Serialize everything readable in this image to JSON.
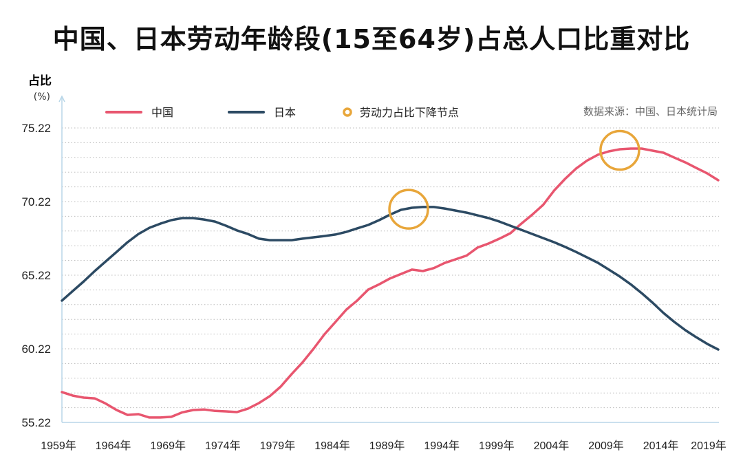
{
  "chart_data": {
    "type": "line",
    "title": "中国、日本劳动年龄段(15至64岁)占总人口比重对比",
    "ylabel": "占比",
    "yunit": "(%)",
    "source": "数据来源：中国、日本统计局",
    "ylim": [
      55.22,
      75.22
    ],
    "yticks": [
      "55.22",
      "60.22",
      "65.22",
      "70.22",
      "75.22"
    ],
    "xticks": [
      "1959年",
      "1964年",
      "1969年",
      "1974年",
      "1979年",
      "1984年",
      "1989年",
      "1994年",
      "1999年",
      "2004年",
      "2009年",
      "2014年",
      "2019年"
    ],
    "xlim": [
      1959,
      2019
    ],
    "grid": "dotted horizontal every 1 unit",
    "legend_position": "top",
    "x": [
      1959,
      1960,
      1961,
      1962,
      1963,
      1964,
      1965,
      1966,
      1967,
      1968,
      1969,
      1970,
      1971,
      1972,
      1973,
      1974,
      1975,
      1976,
      1977,
      1978,
      1979,
      1980,
      1981,
      1982,
      1983,
      1984,
      1985,
      1986,
      1987,
      1988,
      1989,
      1990,
      1991,
      1992,
      1993,
      1994,
      1995,
      1996,
      1997,
      1998,
      1999,
      2000,
      2001,
      2002,
      2003,
      2004,
      2005,
      2006,
      2007,
      2008,
      2009,
      2010,
      2011,
      2012,
      2013,
      2014,
      2015,
      2016,
      2017,
      2018,
      2019
    ],
    "series": [
      {
        "name": "中国",
        "color": "#e8566f",
        "values": [
          57.28,
          57.04,
          56.9,
          56.85,
          56.5,
          56.06,
          55.73,
          55.78,
          55.55,
          55.55,
          55.6,
          55.9,
          56.06,
          56.1,
          56.0,
          55.97,
          55.92,
          56.15,
          56.53,
          57.0,
          57.65,
          58.5,
          59.3,
          60.22,
          61.2,
          62.04,
          62.88,
          63.5,
          64.24,
          64.6,
          65.0,
          65.3,
          65.6,
          65.5,
          65.7,
          66.05,
          66.3,
          66.55,
          67.1,
          67.37,
          67.7,
          68.07,
          68.72,
          69.33,
          70.0,
          70.97,
          71.76,
          72.46,
          73.0,
          73.4,
          73.63,
          73.77,
          73.82,
          73.82,
          73.68,
          73.54,
          73.2,
          72.88,
          72.5,
          72.13,
          71.67
        ]
      },
      {
        "name": "日本",
        "color": "#2c4a63",
        "values": [
          63.49,
          64.15,
          64.8,
          65.5,
          66.15,
          66.8,
          67.46,
          68.02,
          68.44,
          68.72,
          68.96,
          69.1,
          69.1,
          69.0,
          68.86,
          68.58,
          68.26,
          68.02,
          67.7,
          67.6,
          67.6,
          67.6,
          67.7,
          67.79,
          67.88,
          67.98,
          68.16,
          68.4,
          68.63,
          68.96,
          69.33,
          69.66,
          69.8,
          69.85,
          69.85,
          69.75,
          69.61,
          69.47,
          69.28,
          69.1,
          68.86,
          68.58,
          68.3,
          68.02,
          67.74,
          67.46,
          67.14,
          66.8,
          66.43,
          66.06,
          65.6,
          65.13,
          64.6,
          64.0,
          63.35,
          62.65,
          62.04,
          61.48,
          61.0,
          60.55,
          60.17
        ]
      }
    ],
    "annotations": {
      "name": "劳动力占比下降节点",
      "color": "#e8a63a",
      "points": [
        {
          "x": 1990.7,
          "y": 69.7
        },
        {
          "x": 2010,
          "y": 73.7
        }
      ]
    }
  }
}
